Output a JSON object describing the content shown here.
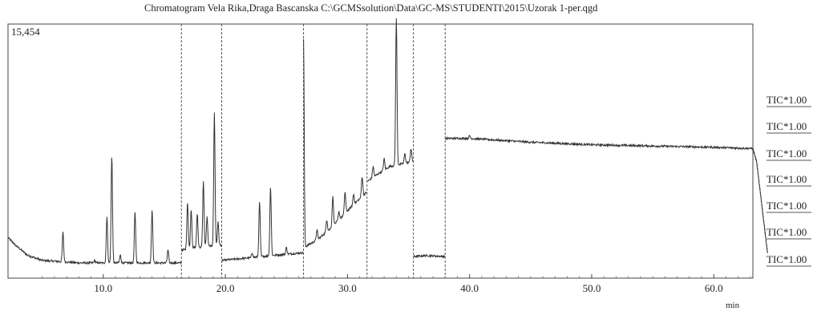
{
  "chart_data": {
    "type": "line",
    "title": "Chromatogram Vela Rika,Draga Bascanska C:\\GCMSsolution\\Data\\GC-MS\\STUDENTI\\2015\\Uzorak 1-per.qgd",
    "y_max_label": "15,454",
    "xlabel": "min",
    "xlim": [
      2.2,
      63.2
    ],
    "ylim": [
      0,
      100
    ],
    "x_ticks": [
      10.0,
      20.0,
      30.0,
      40.0,
      50.0,
      60.0
    ],
    "x_tick_labels": [
      "10.0",
      "20.0",
      "30.0",
      "40.0",
      "50.0",
      "60.0"
    ],
    "segment_boundaries": [
      16.4,
      19.7,
      26.4,
      31.6,
      35.4,
      38.0
    ],
    "segments": [
      {
        "x_start": 2.2,
        "x_end": 16.4,
        "baseline": [
          [
            2.2,
            16
          ],
          [
            2.8,
            13
          ],
          [
            3.8,
            9
          ],
          [
            5,
            7
          ],
          [
            8,
            6
          ],
          [
            12,
            6
          ],
          [
            16.4,
            6
          ]
        ],
        "peaks": [
          [
            6.7,
            18
          ],
          [
            9.3,
            7
          ],
          [
            10.3,
            24
          ],
          [
            10.7,
            48
          ],
          [
            11.4,
            9
          ],
          [
            12.6,
            26
          ],
          [
            14.0,
            27
          ],
          [
            15.3,
            11
          ]
        ]
      },
      {
        "x_start": 16.4,
        "x_end": 19.7,
        "baseline": [
          [
            16.4,
            11
          ],
          [
            17.5,
            12
          ],
          [
            19.7,
            13
          ]
        ],
        "peaks": [
          [
            16.9,
            30
          ],
          [
            17.2,
            27
          ],
          [
            17.7,
            25
          ],
          [
            18.2,
            38
          ],
          [
            18.5,
            24
          ],
          [
            19.1,
            65
          ],
          [
            19.4,
            22
          ]
        ]
      },
      {
        "x_start": 19.7,
        "x_end": 26.4,
        "baseline": [
          [
            19.7,
            7
          ],
          [
            22,
            8
          ],
          [
            24,
            9
          ],
          [
            26.4,
            10
          ]
        ],
        "peaks": [
          [
            22.2,
            10
          ],
          [
            22.8,
            30
          ],
          [
            23.7,
            36
          ],
          [
            25.0,
            12
          ]
        ]
      },
      {
        "x_start": 26.4,
        "x_end": 31.6,
        "baseline": [
          [
            26.4,
            12
          ],
          [
            27.5,
            15
          ],
          [
            28.5,
            19
          ],
          [
            29.5,
            24
          ],
          [
            30.5,
            29
          ],
          [
            31.6,
            34
          ]
        ],
        "peaks": [
          [
            26.4,
            94
          ],
          [
            27.5,
            19
          ],
          [
            28.3,
            23
          ],
          [
            28.8,
            32
          ],
          [
            29.3,
            26
          ],
          [
            29.8,
            34
          ],
          [
            30.5,
            33
          ],
          [
            31.2,
            40
          ]
        ]
      },
      {
        "x_start": 31.6,
        "x_end": 35.4,
        "baseline": [
          [
            31.6,
            38
          ],
          [
            32.5,
            41
          ],
          [
            33.5,
            44
          ],
          [
            34.5,
            45
          ],
          [
            35.4,
            46
          ]
        ],
        "peaks": [
          [
            32.1,
            44
          ],
          [
            33.0,
            47
          ],
          [
            34.0,
            102
          ],
          [
            34.7,
            49
          ],
          [
            35.2,
            51
          ]
        ]
      },
      {
        "x_start": 35.4,
        "x_end": 38.0,
        "baseline": [
          [
            35.4,
            8.5
          ],
          [
            36.5,
            8.9
          ],
          [
            38.0,
            8.5
          ]
        ],
        "peaks": []
      },
      {
        "x_start": 38.0,
        "x_end": 63.2,
        "baseline": [
          [
            38.0,
            55
          ],
          [
            40,
            55
          ],
          [
            45,
            53.5
          ],
          [
            50,
            52.5
          ],
          [
            55,
            52
          ],
          [
            60,
            51.5
          ],
          [
            63.2,
            51
          ],
          [
            63.5,
            46
          ],
          [
            64.4,
            10
          ]
        ],
        "peaks": [
          [
            40.0,
            56
          ]
        ]
      }
    ],
    "legend": [
      "TIC*1.00",
      "TIC*1.00",
      "TIC*1.00",
      "TIC*1.00",
      "TIC*1.00",
      "TIC*1.00",
      "TIC*1.00"
    ],
    "grid": false,
    "legend_placement": "right"
  }
}
